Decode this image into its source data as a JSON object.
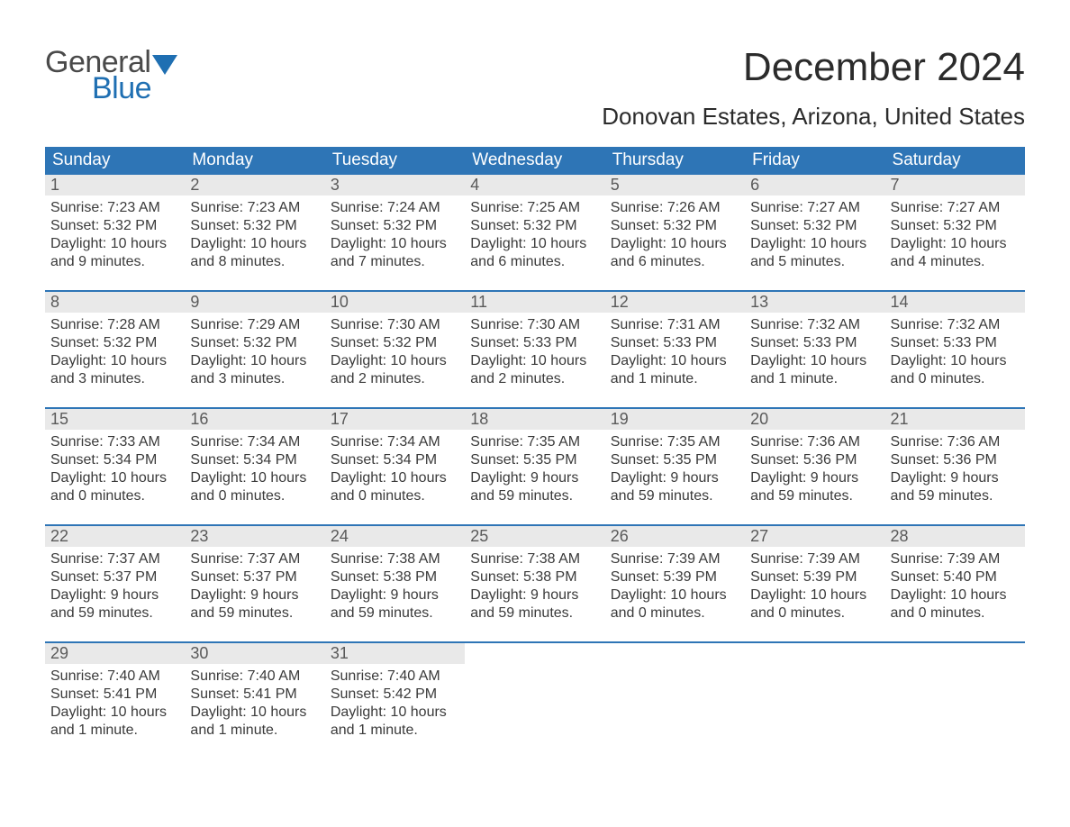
{
  "brand": {
    "part1": "General",
    "part2": "Blue",
    "flag_color": "#1f6fb2"
  },
  "title": "December 2024",
  "location": "Donovan Estates, Arizona, United States",
  "colors": {
    "header_bg": "#2e75b6",
    "header_text": "#ffffff",
    "daynum_bg": "#e9e9e9",
    "week_border": "#2e75b6",
    "body_text": "#3a3a3a",
    "page_bg": "#ffffff"
  },
  "day_headers": [
    "Sunday",
    "Monday",
    "Tuesday",
    "Wednesday",
    "Thursday",
    "Friday",
    "Saturday"
  ],
  "weeks": [
    [
      {
        "n": "1",
        "sr": "Sunrise: 7:23 AM",
        "ss": "Sunset: 5:32 PM",
        "dl1": "Daylight: 10 hours",
        "dl2": "and 9 minutes."
      },
      {
        "n": "2",
        "sr": "Sunrise: 7:23 AM",
        "ss": "Sunset: 5:32 PM",
        "dl1": "Daylight: 10 hours",
        "dl2": "and 8 minutes."
      },
      {
        "n": "3",
        "sr": "Sunrise: 7:24 AM",
        "ss": "Sunset: 5:32 PM",
        "dl1": "Daylight: 10 hours",
        "dl2": "and 7 minutes."
      },
      {
        "n": "4",
        "sr": "Sunrise: 7:25 AM",
        "ss": "Sunset: 5:32 PM",
        "dl1": "Daylight: 10 hours",
        "dl2": "and 6 minutes."
      },
      {
        "n": "5",
        "sr": "Sunrise: 7:26 AM",
        "ss": "Sunset: 5:32 PM",
        "dl1": "Daylight: 10 hours",
        "dl2": "and 6 minutes."
      },
      {
        "n": "6",
        "sr": "Sunrise: 7:27 AM",
        "ss": "Sunset: 5:32 PM",
        "dl1": "Daylight: 10 hours",
        "dl2": "and 5 minutes."
      },
      {
        "n": "7",
        "sr": "Sunrise: 7:27 AM",
        "ss": "Sunset: 5:32 PM",
        "dl1": "Daylight: 10 hours",
        "dl2": "and 4 minutes."
      }
    ],
    [
      {
        "n": "8",
        "sr": "Sunrise: 7:28 AM",
        "ss": "Sunset: 5:32 PM",
        "dl1": "Daylight: 10 hours",
        "dl2": "and 3 minutes."
      },
      {
        "n": "9",
        "sr": "Sunrise: 7:29 AM",
        "ss": "Sunset: 5:32 PM",
        "dl1": "Daylight: 10 hours",
        "dl2": "and 3 minutes."
      },
      {
        "n": "10",
        "sr": "Sunrise: 7:30 AM",
        "ss": "Sunset: 5:32 PM",
        "dl1": "Daylight: 10 hours",
        "dl2": "and 2 minutes."
      },
      {
        "n": "11",
        "sr": "Sunrise: 7:30 AM",
        "ss": "Sunset: 5:33 PM",
        "dl1": "Daylight: 10 hours",
        "dl2": "and 2 minutes."
      },
      {
        "n": "12",
        "sr": "Sunrise: 7:31 AM",
        "ss": "Sunset: 5:33 PM",
        "dl1": "Daylight: 10 hours",
        "dl2": "and 1 minute."
      },
      {
        "n": "13",
        "sr": "Sunrise: 7:32 AM",
        "ss": "Sunset: 5:33 PM",
        "dl1": "Daylight: 10 hours",
        "dl2": "and 1 minute."
      },
      {
        "n": "14",
        "sr": "Sunrise: 7:32 AM",
        "ss": "Sunset: 5:33 PM",
        "dl1": "Daylight: 10 hours",
        "dl2": "and 0 minutes."
      }
    ],
    [
      {
        "n": "15",
        "sr": "Sunrise: 7:33 AM",
        "ss": "Sunset: 5:34 PM",
        "dl1": "Daylight: 10 hours",
        "dl2": "and 0 minutes."
      },
      {
        "n": "16",
        "sr": "Sunrise: 7:34 AM",
        "ss": "Sunset: 5:34 PM",
        "dl1": "Daylight: 10 hours",
        "dl2": "and 0 minutes."
      },
      {
        "n": "17",
        "sr": "Sunrise: 7:34 AM",
        "ss": "Sunset: 5:34 PM",
        "dl1": "Daylight: 10 hours",
        "dl2": "and 0 minutes."
      },
      {
        "n": "18",
        "sr": "Sunrise: 7:35 AM",
        "ss": "Sunset: 5:35 PM",
        "dl1": "Daylight: 9 hours",
        "dl2": "and 59 minutes."
      },
      {
        "n": "19",
        "sr": "Sunrise: 7:35 AM",
        "ss": "Sunset: 5:35 PM",
        "dl1": "Daylight: 9 hours",
        "dl2": "and 59 minutes."
      },
      {
        "n": "20",
        "sr": "Sunrise: 7:36 AM",
        "ss": "Sunset: 5:36 PM",
        "dl1": "Daylight: 9 hours",
        "dl2": "and 59 minutes."
      },
      {
        "n": "21",
        "sr": "Sunrise: 7:36 AM",
        "ss": "Sunset: 5:36 PM",
        "dl1": "Daylight: 9 hours",
        "dl2": "and 59 minutes."
      }
    ],
    [
      {
        "n": "22",
        "sr": "Sunrise: 7:37 AM",
        "ss": "Sunset: 5:37 PM",
        "dl1": "Daylight: 9 hours",
        "dl2": "and 59 minutes."
      },
      {
        "n": "23",
        "sr": "Sunrise: 7:37 AM",
        "ss": "Sunset: 5:37 PM",
        "dl1": "Daylight: 9 hours",
        "dl2": "and 59 minutes."
      },
      {
        "n": "24",
        "sr": "Sunrise: 7:38 AM",
        "ss": "Sunset: 5:38 PM",
        "dl1": "Daylight: 9 hours",
        "dl2": "and 59 minutes."
      },
      {
        "n": "25",
        "sr": "Sunrise: 7:38 AM",
        "ss": "Sunset: 5:38 PM",
        "dl1": "Daylight: 9 hours",
        "dl2": "and 59 minutes."
      },
      {
        "n": "26",
        "sr": "Sunrise: 7:39 AM",
        "ss": "Sunset: 5:39 PM",
        "dl1": "Daylight: 10 hours",
        "dl2": "and 0 minutes."
      },
      {
        "n": "27",
        "sr": "Sunrise: 7:39 AM",
        "ss": "Sunset: 5:39 PM",
        "dl1": "Daylight: 10 hours",
        "dl2": "and 0 minutes."
      },
      {
        "n": "28",
        "sr": "Sunrise: 7:39 AM",
        "ss": "Sunset: 5:40 PM",
        "dl1": "Daylight: 10 hours",
        "dl2": "and 0 minutes."
      }
    ],
    [
      {
        "n": "29",
        "sr": "Sunrise: 7:40 AM",
        "ss": "Sunset: 5:41 PM",
        "dl1": "Daylight: 10 hours",
        "dl2": "and 1 minute."
      },
      {
        "n": "30",
        "sr": "Sunrise: 7:40 AM",
        "ss": "Sunset: 5:41 PM",
        "dl1": "Daylight: 10 hours",
        "dl2": "and 1 minute."
      },
      {
        "n": "31",
        "sr": "Sunrise: 7:40 AM",
        "ss": "Sunset: 5:42 PM",
        "dl1": "Daylight: 10 hours",
        "dl2": "and 1 minute."
      },
      null,
      null,
      null,
      null
    ]
  ]
}
